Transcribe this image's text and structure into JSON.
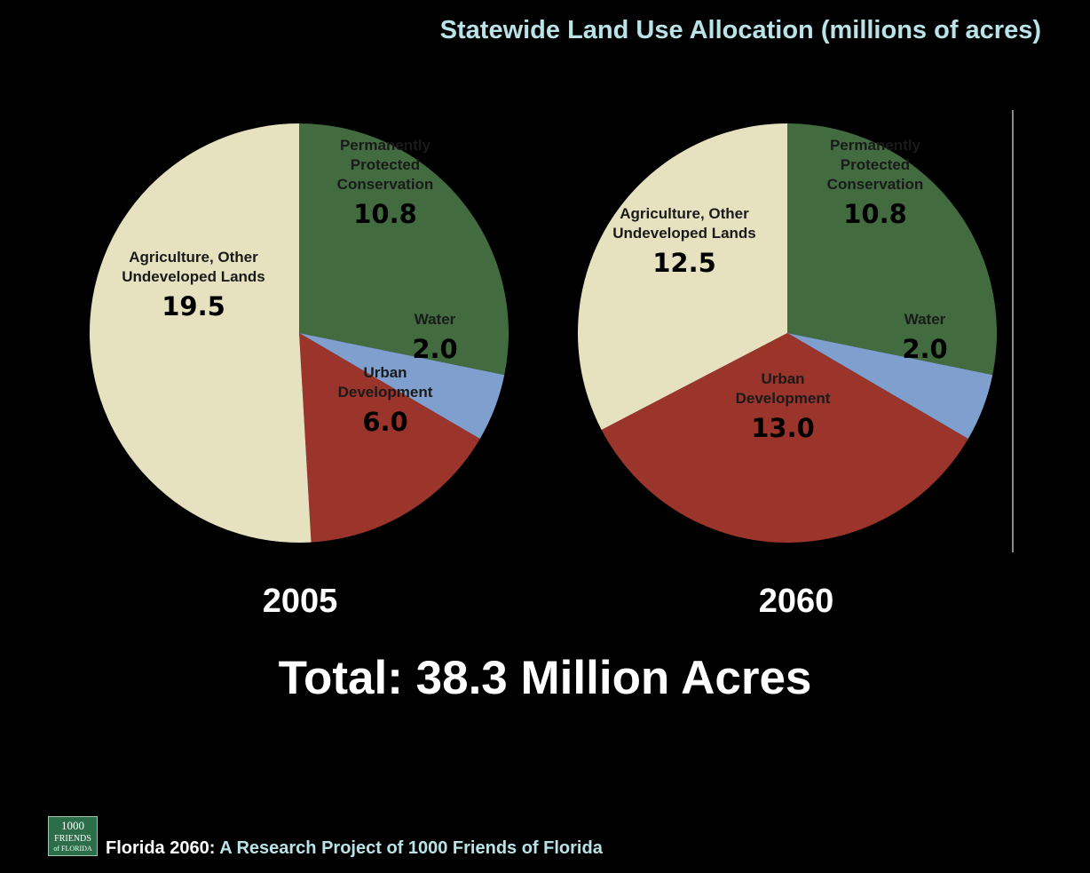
{
  "title": "Statewide Land Use Allocation  (millions of acres)",
  "total_label": "Total: 38.3 Million Acres",
  "footer": {
    "prefix": "Florida 2060:",
    "text": " A Research Project of 1000 Friends of Florida"
  },
  "logo": {
    "line1": "1000",
    "line2": "FRIENDS",
    "line3": "of FLORIDA"
  },
  "colors": {
    "conservation": "#426b40",
    "water": "#7f9fcf",
    "urban": "#9b342a",
    "agriculture": "#e6e2c0",
    "title": "#b9e3e6"
  },
  "chart_data": [
    {
      "type": "pie",
      "title": "2005",
      "slices": [
        {
          "key": "conservation",
          "label": [
            "Permanently",
            "Protected",
            "Conservation"
          ],
          "value": 10.8,
          "display": "10.8"
        },
        {
          "key": "water",
          "label": [
            "Water"
          ],
          "value": 2.0,
          "display": "2.0"
        },
        {
          "key": "urban",
          "label": [
            "Urban",
            "Development"
          ],
          "value": 6.0,
          "display": "6.0"
        },
        {
          "key": "agriculture",
          "label": [
            "Agriculture, Other",
            "Undeveloped Lands"
          ],
          "value": 19.5,
          "display": "19.5"
        }
      ]
    },
    {
      "type": "pie",
      "title": "2060",
      "slices": [
        {
          "key": "conservation",
          "label": [
            "Permanently",
            "Protected",
            "Conservation"
          ],
          "value": 10.8,
          "display": "10.8"
        },
        {
          "key": "water",
          "label": [
            "Water"
          ],
          "value": 2.0,
          "display": "2.0"
        },
        {
          "key": "urban",
          "label": [
            "Urban",
            "Development"
          ],
          "value": 13.0,
          "display": "13.0"
        },
        {
          "key": "agriculture",
          "label": [
            "Agriculture, Other",
            "Undeveloped Lands"
          ],
          "value": 12.5,
          "display": "12.5"
        }
      ]
    }
  ]
}
